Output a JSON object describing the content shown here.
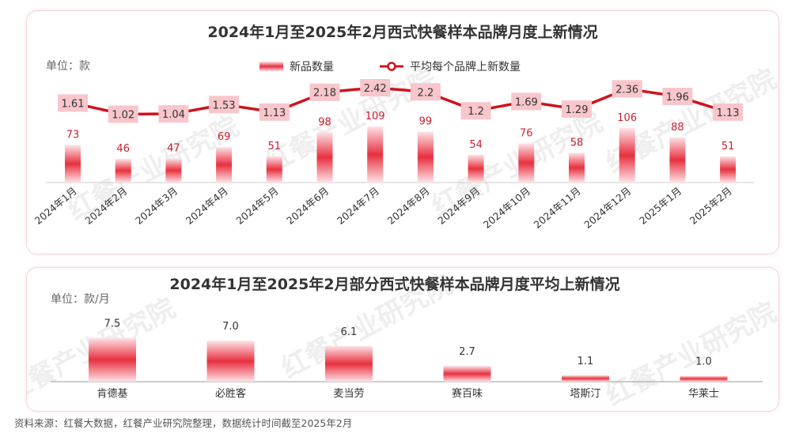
{
  "chart_data": [
    {
      "type": "bar",
      "title": "2024年1月至2025年2月西式快餐样本品牌月度上新情况",
      "unit_label": "单位：款",
      "categories": [
        "2024年1月",
        "2024年2月",
        "2024年3月",
        "2024年4月",
        "2024年5月",
        "2024年6月",
        "2024年7月",
        "2024年8月",
        "2024年9月",
        "2024年10月",
        "2024年11月",
        "2024年12月",
        "2025年1月",
        "2025年2月"
      ],
      "series": [
        {
          "name": "新品数量",
          "type": "bar",
          "color": "#e8303f",
          "values": [
            73,
            46,
            47,
            69,
            51,
            98,
            109,
            99,
            54,
            76,
            58,
            106,
            88,
            51
          ]
        },
        {
          "name": "平均每个品牌上新数量",
          "type": "line",
          "color": "#d0121b",
          "values": [
            1.61,
            1.02,
            1.04,
            1.53,
            1.13,
            2.18,
            2.42,
            2.2,
            1.2,
            1.69,
            1.29,
            2.36,
            1.96,
            1.13
          ]
        }
      ],
      "legend": "top-center"
    },
    {
      "type": "bar",
      "title": "2024年1月至2025年2月部分西式快餐样本品牌月度平均上新情况",
      "unit_label": "单位：款/月",
      "categories": [
        "肯德基",
        "必胜客",
        "麦当劳",
        "赛百味",
        "塔斯汀",
        "华莱士"
      ],
      "values": [
        7.5,
        7.0,
        6.1,
        2.7,
        1.1,
        1.0
      ],
      "value_labels": [
        "7.5",
        "7.0",
        "6.1",
        "2.7",
        "1.1",
        "1.0"
      ],
      "color": "#e8303f"
    }
  ],
  "watermark": "红餐产业研究院",
  "footer": "资料来源：红餐大数据，红餐产业研究院整理，数据统计时间截至2025年2月"
}
